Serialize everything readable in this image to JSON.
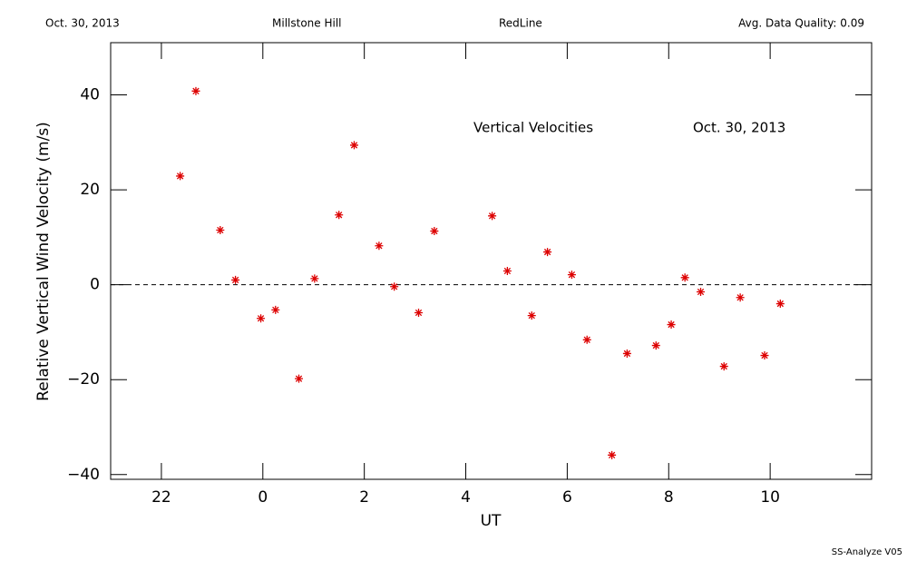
{
  "header": {
    "left": "Oct. 30, 2013",
    "center_left": "Millstone Hill",
    "center_right": "RedLine",
    "right": "Avg. Data Quality: 0.09"
  },
  "footer": "SS-Analyze V05",
  "chart_data": {
    "type": "scatter",
    "annotations": [
      "Vertical Velocities",
      "Oct. 30, 2013"
    ],
    "x_label": "UT",
    "y_label": "Relative Vertical Wind Velocity (m/s)",
    "color": "#dd0000",
    "x": [
      -1.63,
      -1.32,
      -0.84,
      -0.54,
      -0.04,
      0.25,
      0.71,
      1.02,
      1.5,
      1.8,
      2.29,
      2.59,
      3.07,
      3.38,
      4.52,
      4.82,
      5.3,
      5.61,
      6.09,
      6.39,
      6.88,
      7.18,
      7.75,
      8.05,
      8.32,
      8.63,
      9.09,
      9.41,
      9.89,
      10.2
    ],
    "values": [
      22.9,
      40.8,
      11.5,
      1.0,
      -7.1,
      -5.3,
      -19.8,
      1.3,
      14.7,
      29.4,
      8.2,
      -0.4,
      -5.9,
      11.3,
      14.5,
      2.9,
      -6.5,
      6.9,
      2.1,
      -11.6,
      -35.9,
      -14.5,
      -12.8,
      -8.4,
      1.5,
      -1.5,
      -17.2,
      -2.7,
      -14.9,
      -4.0
    ],
    "xlim": [
      -3,
      12
    ],
    "xticks": [
      {
        "value": -2,
        "label": "22"
      },
      0,
      2,
      4,
      6,
      8,
      10
    ],
    "ylim": [
      -41,
      51
    ],
    "yticks": [
      {
        "value": -40,
        "label": "−40"
      },
      {
        "value": -20,
        "label": "−20"
      },
      0,
      20,
      40
    ],
    "reference_line": 0
  }
}
